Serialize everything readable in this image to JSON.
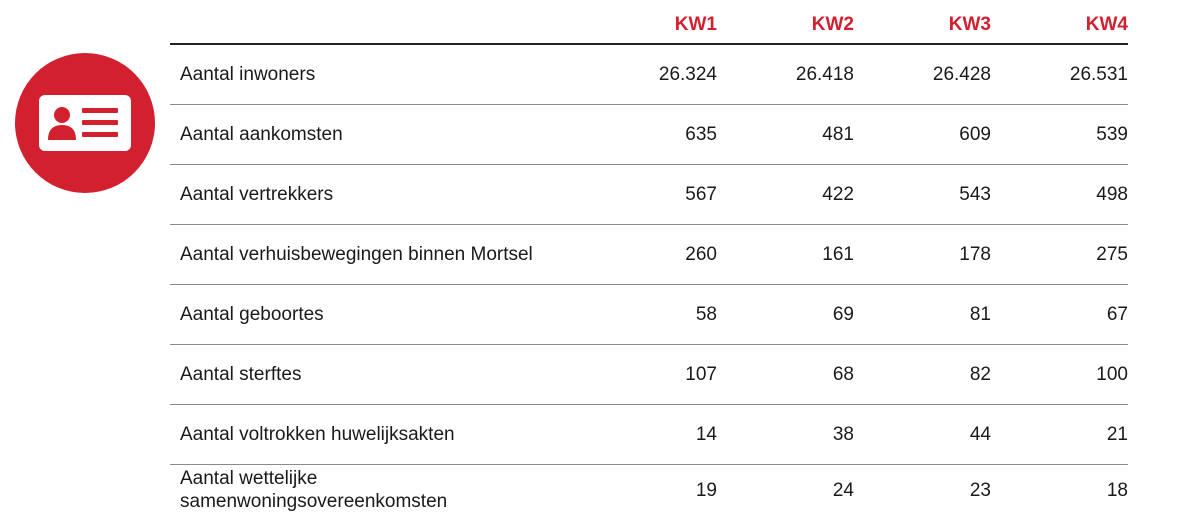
{
  "table": {
    "header": [
      "KW1",
      "KW2",
      "KW3",
      "KW4"
    ],
    "rows": [
      {
        "label": "Aantal inwoners",
        "values": [
          "26.324",
          "26.418",
          "26.428",
          "26.531"
        ]
      },
      {
        "label": "Aantal aankomsten",
        "values": [
          635,
          481,
          609,
          539
        ]
      },
      {
        "label": "Aantal vertrekkers",
        "values": [
          567,
          422,
          543,
          498
        ]
      },
      {
        "label": "Aantal verhuisbewegingen binnen Mortsel",
        "values": [
          260,
          161,
          178,
          275
        ]
      },
      {
        "label": "Aantal geboortes",
        "values": [
          58,
          69,
          81,
          67
        ]
      },
      {
        "label": "Aantal sterftes",
        "values": [
          107,
          68,
          82,
          100
        ]
      },
      {
        "label": "Aantal voltrokken huwelijksakten",
        "values": [
          14,
          38,
          44,
          21
        ]
      },
      {
        "label": "Aantal wettelijke samenwoningsovereenkomsten",
        "values": [
          19,
          24,
          23,
          18
        ]
      }
    ]
  }
}
